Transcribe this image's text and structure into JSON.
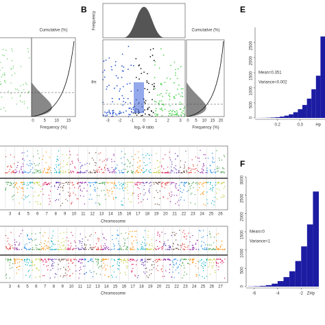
{
  "figure": {
    "panel_a": {
      "x_label": "Frequency (%)",
      "top_label": "Cumulative (%)",
      "x_ticks": [
        "0",
        "5",
        "10",
        "15"
      ]
    },
    "panel_b": {
      "label": "B",
      "top_y_label": "Frequency",
      "y_label": "θπ",
      "x_label": "log₂ θ ratio",
      "x_ticks": [
        "-3",
        "-2",
        "-1",
        "0",
        "1",
        "2",
        "3"
      ],
      "right_x_label": "Frequency (%)",
      "right_top_label": "Cumulative (%)",
      "right_x_ticks": [
        "0",
        "5",
        "10",
        "15",
        "20"
      ]
    },
    "panel_c": {
      "x_label": "Chromosome",
      "chromosomes": [
        "3",
        "4",
        "5",
        "6",
        "7",
        "8",
        "9",
        "10",
        "11",
        "12",
        "13",
        "14",
        "15",
        "16",
        "17",
        "18",
        "19",
        "20",
        "21",
        "22",
        "23",
        "24",
        "25",
        "26"
      ]
    },
    "panel_d": {
      "x_label": "Chromosome",
      "chromosomes": [
        "3",
        "4",
        "5",
        "6",
        "7",
        "8",
        "9",
        "10",
        "11",
        "12",
        "13",
        "14",
        "15",
        "16",
        "17",
        "18",
        "19",
        "20",
        "21",
        "22",
        "23",
        "24",
        "25",
        "26",
        "27"
      ]
    }
  },
  "chart_data": [
    {
      "type": "histogram",
      "label": "E",
      "x_label": "Hp",
      "annotations": [
        "Mean=0.351",
        "Variance=0.002"
      ],
      "color": "#1c1ca3",
      "bins": [
        0.11,
        0.13,
        0.15,
        0.17,
        0.19,
        0.21,
        0.23,
        0.25,
        0.27,
        0.29,
        0.31,
        0.33,
        0.35,
        0.37,
        0.39,
        0.41
      ],
      "values": [
        2,
        4,
        8,
        15,
        25,
        45,
        75,
        120,
        190,
        290,
        430,
        640,
        950,
        1400,
        2700
      ],
      "xlim": [
        0.11,
        0.41
      ],
      "xticks": [
        0.2,
        0.3
      ],
      "ylim": [
        0,
        3000
      ],
      "yticks": [
        0,
        500,
        1000,
        1500,
        2000,
        2500
      ]
    },
    {
      "type": "histogram",
      "label": "F",
      "x_label": "ZHp",
      "annotations": [
        "Mean=0",
        "Variance=1"
      ],
      "color": "#1c1ca3",
      "bins": [
        -6.5,
        -6,
        -5.5,
        -5,
        -4.5,
        -4,
        -3.5,
        -3,
        -2.5,
        -2,
        -1.5,
        -1,
        -0.5
      ],
      "values": [
        5,
        10,
        20,
        40,
        80,
        150,
        260,
        420,
        700,
        1100,
        1700,
        2600
      ],
      "xlim": [
        -6.5,
        -0.5
      ],
      "xticks": [
        -6,
        -4,
        -2
      ],
      "ylim": [
        0,
        3000
      ],
      "yticks": [
        0,
        500,
        1000,
        1500,
        2000,
        2500,
        3000
      ]
    }
  ]
}
